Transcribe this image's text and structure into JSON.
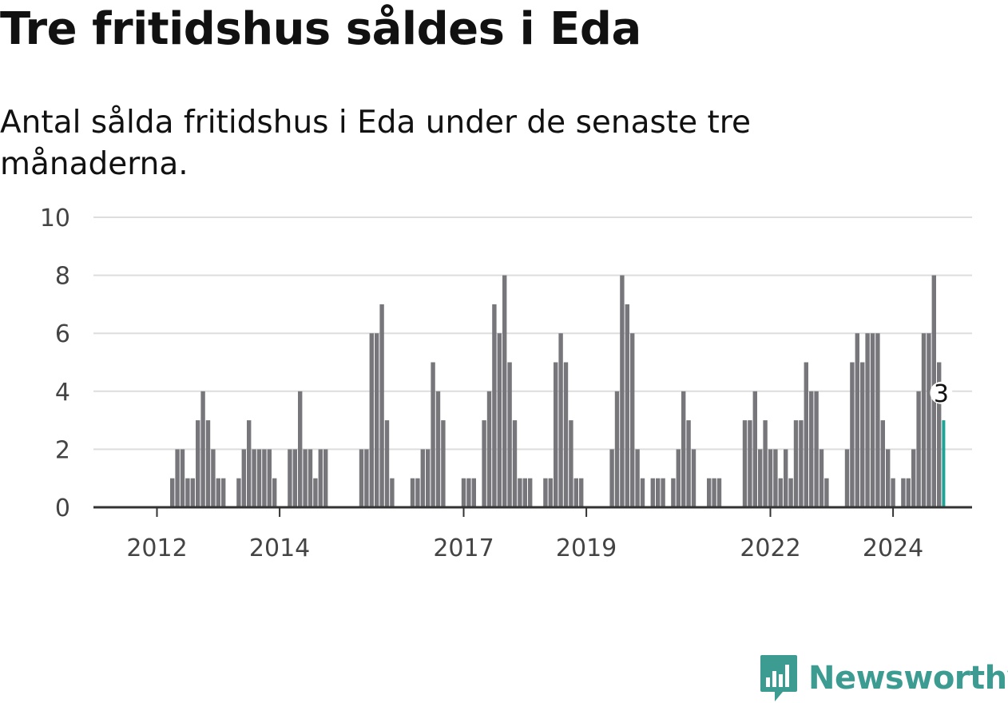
{
  "header": {
    "title": "Tre fritidshus såldes i Eda",
    "subtitle": "Antal sålda fritidshus i Eda under de senaste tre månaderna."
  },
  "brand": {
    "name": "Newsworthy",
    "logo_icon": "bar-chart-speech-bubble-icon"
  },
  "colors": {
    "bar": "#77767b",
    "highlight": "#1ea396",
    "grid": "#dddddd",
    "axis": "#333333",
    "brand": "#3d9c92"
  },
  "chart_data": {
    "type": "bar",
    "title": "Tre fritidshus såldes i Eda",
    "subtitle": "Antal sålda fritidshus i Eda under de senaste tre månaderna.",
    "xlabel": "",
    "ylabel": "",
    "ylim": [
      0,
      10
    ],
    "yticks": [
      0,
      2,
      4,
      6,
      8,
      10
    ],
    "grid": true,
    "legend": "none",
    "x_start": "2011-01",
    "x_tick_labels": [
      {
        "label": "2012",
        "month_index": 12
      },
      {
        "label": "2014",
        "month_index": 36
      },
      {
        "label": "2017",
        "month_index": 72
      },
      {
        "label": "2019",
        "month_index": 96
      },
      {
        "label": "2022",
        "month_index": 132
      },
      {
        "label": "2024",
        "month_index": 156
      }
    ],
    "values": [
      0,
      0,
      0,
      0,
      0,
      0,
      0,
      0,
      0,
      0,
      0,
      0,
      0,
      0,
      0,
      1,
      2,
      2,
      1,
      1,
      3,
      4,
      3,
      2,
      1,
      1,
      0,
      0,
      1,
      2,
      3,
      2,
      2,
      2,
      2,
      1,
      0,
      0,
      2,
      2,
      4,
      2,
      2,
      1,
      2,
      2,
      0,
      0,
      0,
      0,
      0,
      0,
      2,
      2,
      6,
      6,
      7,
      3,
      1,
      0,
      0,
      0,
      1,
      1,
      2,
      2,
      5,
      4,
      3,
      0,
      0,
      0,
      1,
      1,
      1,
      0,
      3,
      4,
      7,
      6,
      8,
      5,
      3,
      1,
      1,
      1,
      0,
      0,
      1,
      1,
      5,
      6,
      5,
      3,
      1,
      1,
      0,
      0,
      0,
      0,
      0,
      2,
      4,
      8,
      7,
      6,
      2,
      1,
      0,
      1,
      1,
      1,
      0,
      1,
      2,
      4,
      3,
      2,
      0,
      0,
      1,
      1,
      1,
      0,
      0,
      0,
      0,
      3,
      3,
      4,
      2,
      3,
      2,
      2,
      1,
      2,
      1,
      3,
      3,
      5,
      4,
      4,
      2,
      1,
      0,
      0,
      0,
      2,
      5,
      6,
      5,
      6,
      6,
      6,
      3,
      2,
      1,
      0,
      1,
      1,
      2,
      4,
      6,
      6,
      8,
      5,
      3
    ],
    "highlight": {
      "month_index": 166,
      "value": 3,
      "label": "3"
    }
  }
}
